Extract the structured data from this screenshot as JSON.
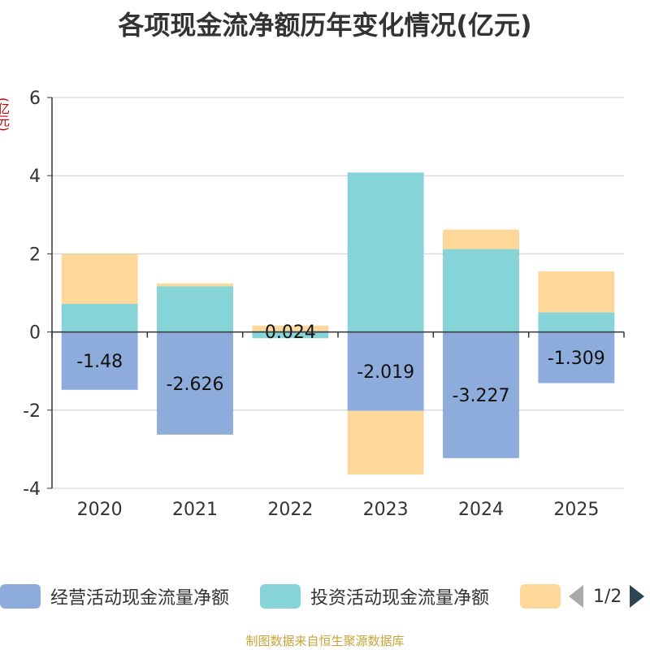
{
  "title": "各项现金流净额历年变化情况(亿元)",
  "unit_label": "(亿元)",
  "source": "制图数据来自恒生聚源数据库",
  "legend": {
    "items": [
      {
        "label": "经营活动现金流量净额",
        "color": "#8eacdb"
      },
      {
        "label": "投资活动现金流量净额",
        "color": "#86d4d8"
      },
      {
        "label": "",
        "color": "#fdd89a"
      }
    ],
    "page": "1/2"
  },
  "chart_data": {
    "type": "bar",
    "stacked": true,
    "title": "各项现金流净额历年变化情况(亿元)",
    "ylabel": "(亿元)",
    "xlabel": "",
    "ylim": [
      -4,
      6
    ],
    "yticks": [
      -4,
      -2,
      0,
      2,
      4,
      6
    ],
    "grid": true,
    "legend_position": "bottom",
    "categories": [
      "2020",
      "2021",
      "2022",
      "2023",
      "2024",
      "2025"
    ],
    "series": [
      {
        "name": "经营活动现金流量净额",
        "color": "#8eacdb",
        "values": [
          -1.48,
          -2.626,
          0.024,
          -2.019,
          -3.227,
          -1.309
        ],
        "labels": [
          "-1.48",
          "-2.626",
          "0.024",
          "-2.019",
          "-3.227",
          "-1.309"
        ]
      },
      {
        "name": "投资活动现金流量净额",
        "color": "#86d4d8",
        "values": [
          0.72,
          1.17,
          -0.16,
          4.08,
          2.12,
          0.5
        ]
      },
      {
        "name": "",
        "color": "#fdd89a",
        "values": [
          1.27,
          0.07,
          0.14,
          -1.63,
          0.5,
          1.05
        ]
      }
    ]
  }
}
